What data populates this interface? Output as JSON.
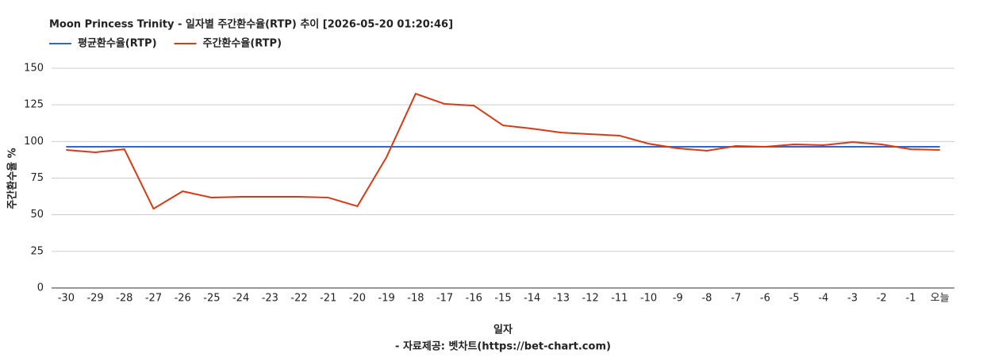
{
  "chart_data": {
    "type": "line",
    "title": "Moon Princess Trinity - 일자별 주간환수율(RTP) 추이 [2026-05-20 01:20:46]",
    "x_label": "일자",
    "y_label": "주간환수율 %",
    "source": "- 자료제공: 벳차트(https://bet-chart.com)",
    "categories": [
      "-30",
      "-29",
      "-28",
      "-27",
      "-26",
      "-25",
      "-24",
      "-23",
      "-22",
      "-21",
      "-20",
      "-19",
      "-18",
      "-17",
      "-16",
      "-15",
      "-14",
      "-13",
      "-12",
      "-11",
      "-10",
      "-9",
      "-8",
      "-7",
      "-6",
      "-5",
      "-4",
      "-3",
      "-2",
      "-1",
      "오늘"
    ],
    "series": [
      {
        "name": "평균환수율(RTP)",
        "color": "#3366cc",
        "values": [
          96.4,
          96.4,
          96.4,
          96.4,
          96.4,
          96.4,
          96.4,
          96.4,
          96.4,
          96.4,
          96.4,
          96.4,
          96.4,
          96.4,
          96.4,
          96.4,
          96.4,
          96.4,
          96.4,
          96.4,
          96.4,
          96.4,
          96.4,
          96.4,
          96.4,
          96.4,
          96.4,
          96.4,
          96.4,
          96.4,
          96.4
        ]
      },
      {
        "name": "주간환수율(RTP)",
        "color": "#dc3912",
        "values": [
          94.2,
          92.6,
          94.7,
          54.1,
          66.0,
          61.7,
          62.3,
          62.3,
          62.3,
          61.7,
          55.8,
          89.3,
          132.6,
          125.6,
          124.5,
          111.0,
          108.8,
          106.1,
          105.0,
          104.0,
          98.5,
          95.3,
          93.7,
          96.9,
          96.4,
          98.0,
          97.5,
          99.6,
          98.0,
          94.7,
          94.2
        ]
      }
    ],
    "ylim": [
      0,
      150
    ],
    "yticks": [
      0,
      25,
      50,
      75,
      100,
      125,
      150
    ],
    "grid": true
  }
}
